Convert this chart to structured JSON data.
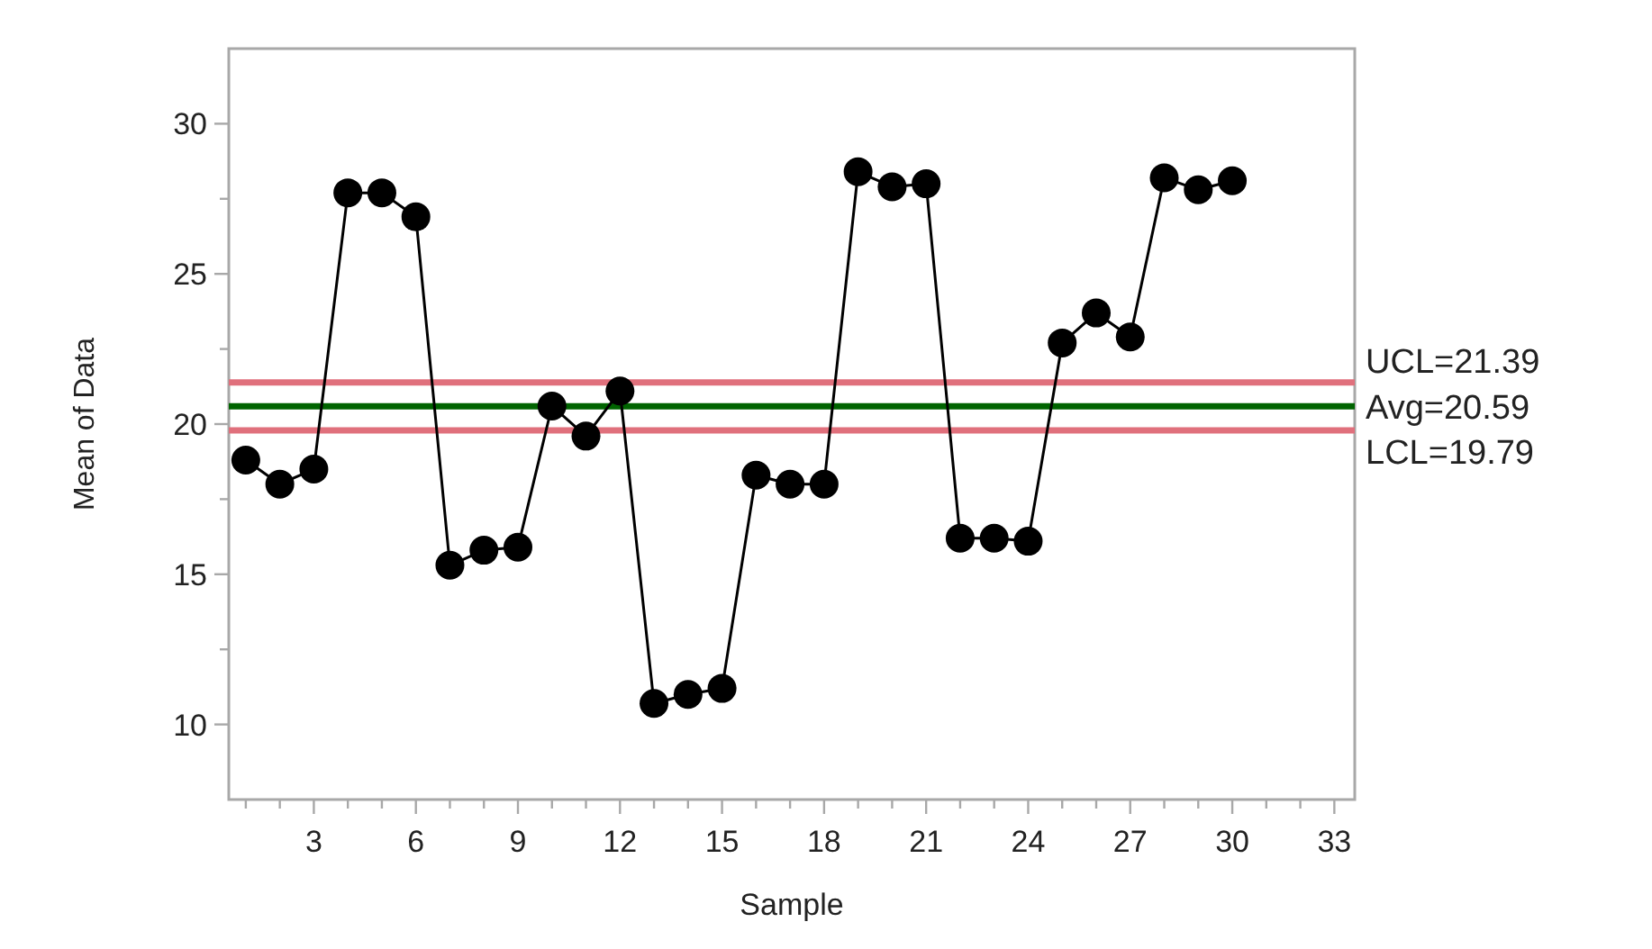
{
  "chart_data": {
    "type": "line",
    "xlabel": "Sample",
    "ylabel": "Mean of Data",
    "x": [
      1,
      2,
      3,
      4,
      5,
      6,
      7,
      8,
      9,
      10,
      11,
      12,
      13,
      14,
      15,
      16,
      17,
      18,
      19,
      20,
      21,
      22,
      23,
      24,
      25,
      26,
      27,
      28,
      29,
      30
    ],
    "series": [
      {
        "color": "#000000",
        "values": [
          18.8,
          18.0,
          18.5,
          27.7,
          27.7,
          26.9,
          15.3,
          15.8,
          15.9,
          20.6,
          19.6,
          21.1,
          10.7,
          11.0,
          11.2,
          18.3,
          18.0,
          18.0,
          28.4,
          27.9,
          28.0,
          16.2,
          16.2,
          16.1,
          22.7,
          23.7,
          22.9,
          28.2,
          27.8,
          28.1
        ]
      }
    ],
    "xlim": [
      0.5,
      33.6
    ],
    "xticks": [
      {
        "value": 1,
        "label": null
      },
      {
        "value": 2,
        "label": null
      },
      3,
      {
        "value": 4,
        "label": null
      },
      {
        "value": 5,
        "label": null
      },
      6,
      {
        "value": 7,
        "label": null
      },
      {
        "value": 8,
        "label": null
      },
      9,
      {
        "value": 10,
        "label": null
      },
      {
        "value": 11,
        "label": null
      },
      12,
      {
        "value": 13,
        "label": null
      },
      {
        "value": 14,
        "label": null
      },
      15,
      {
        "value": 16,
        "label": null
      },
      {
        "value": 17,
        "label": null
      },
      18,
      {
        "value": 19,
        "label": null
      },
      {
        "value": 20,
        "label": null
      },
      21,
      {
        "value": 22,
        "label": null
      },
      {
        "value": 23,
        "label": null
      },
      24,
      {
        "value": 25,
        "label": null
      },
      {
        "value": 26,
        "label": null
      },
      27,
      {
        "value": 28,
        "label": null
      },
      {
        "value": 29,
        "label": null
      },
      30,
      {
        "value": 31,
        "label": null
      },
      {
        "value": 32,
        "label": null
      },
      33
    ],
    "ylim": [
      7.5,
      32.5
    ],
    "yticks": [
      10,
      {
        "value": 12.5,
        "label": null
      },
      15,
      {
        "value": 17.5,
        "label": null
      },
      20,
      {
        "value": 22.5,
        "label": null
      },
      25,
      {
        "value": 27.5,
        "label": null
      },
      30
    ],
    "ref_lines": [
      {
        "axis": "y",
        "value": 21.39,
        "label": "UCL=21.39",
        "color": "#e0707c"
      },
      {
        "axis": "y",
        "value": 20.59,
        "label": "Avg=20.59",
        "color": "#006400"
      },
      {
        "axis": "y",
        "value": 19.79,
        "label": "LCL=19.79",
        "color": "#e0707c"
      }
    ],
    "marker": "circle",
    "line_style": "solid"
  }
}
